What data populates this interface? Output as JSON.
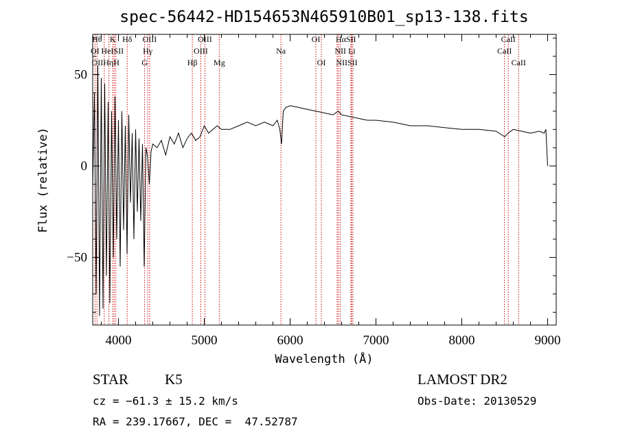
{
  "chart_data": {
    "type": "line",
    "title": "spec-56442-HD154653N465910B01_sp13-138.fits",
    "xlabel": "Wavelength (Å)",
    "ylabel": "Flux (relative)",
    "xlim": [
      3700,
      9100
    ],
    "ylim": [
      -87,
      72
    ],
    "x_ticks": [
      4000,
      5000,
      6000,
      7000,
      8000,
      9000
    ],
    "x_tick_labels": [
      "4000",
      "5000",
      "6000",
      "7000",
      "8000",
      "9000"
    ],
    "y_ticks": [
      50,
      0,
      -50
    ],
    "y_tick_labels": [
      "50",
      "0",
      "−50"
    ],
    "grid": false,
    "line_color": "#000000",
    "marker_color": "#cc0000",
    "series": [
      {
        "x": [
          3700,
          3720,
          3740,
          3760,
          3780,
          3800,
          3820,
          3840,
          3860,
          3880,
          3900,
          3920,
          3940,
          3960,
          3980,
          4000,
          4020,
          4040,
          4060,
          4080,
          4100,
          4120,
          4140,
          4160,
          4180,
          4200,
          4220,
          4240,
          4260,
          4280,
          4300,
          4320,
          4340,
          4360,
          4380,
          4400,
          4450,
          4500,
          4550,
          4600,
          4650,
          4700,
          4750,
          4800,
          4850,
          4900,
          4950,
          5000,
          5050,
          5100,
          5150,
          5200,
          5300,
          5400,
          5500,
          5600,
          5700,
          5800,
          5850,
          5880,
          5900,
          5920,
          5950,
          6000,
          6100,
          6200,
          6300,
          6400,
          6500,
          6560,
          6600,
          6700,
          6800,
          6900,
          7000,
          7200,
          7400,
          7600,
          7800,
          8000,
          8200,
          8400,
          8500,
          8540,
          8600,
          8700,
          8800,
          8900,
          8960,
          8980,
          9000
        ],
        "y": [
          -12,
          40,
          -70,
          55,
          -82,
          48,
          -78,
          45,
          -60,
          35,
          -75,
          30,
          -50,
          38,
          -40,
          25,
          -55,
          30,
          -35,
          22,
          -48,
          28,
          -20,
          18,
          -40,
          20,
          -25,
          15,
          -30,
          12,
          -55,
          10,
          5,
          -10,
          8,
          12,
          10,
          14,
          6,
          16,
          12,
          18,
          10,
          15,
          18,
          14,
          16,
          22,
          18,
          20,
          22,
          20,
          20,
          22,
          24,
          22,
          24,
          22,
          25,
          20,
          12,
          30,
          32,
          33,
          32,
          31,
          30,
          29,
          28,
          30,
          28,
          27,
          26,
          25,
          25,
          24,
          22,
          22,
          21,
          20,
          20,
          19,
          16,
          18,
          20,
          19,
          18,
          19,
          18,
          20,
          0
        ]
      }
    ],
    "lines": [
      {
        "name": "OII",
        "x": 3727
      },
      {
        "name": "Hθ",
        "x": 3750
      },
      {
        "name": "Hη",
        "x": 3835
      },
      {
        "name": "HeI",
        "x": 3889
      },
      {
        "name": "K",
        "x": 3934
      },
      {
        "name": "SII",
        "x": 3950
      },
      {
        "name": "H",
        "x": 3969
      },
      {
        "name": "Hδ",
        "x": 4102
      },
      {
        "name": "G",
        "x": 4305
      },
      {
        "name": "Hγ",
        "x": 4341
      },
      {
        "name": "OIII",
        "x": 4363
      },
      {
        "name": "Hβ",
        "x": 4861
      },
      {
        "name": "OIII",
        "x": 4959
      },
      {
        "name": "OIII",
        "x": 5007
      },
      {
        "name": "Mg",
        "x": 5175
      },
      {
        "name": "Na",
        "x": 5893
      },
      {
        "name": "OI",
        "x": 6300
      },
      {
        "name": "OI",
        "x": 6364
      },
      {
        "name": "NII",
        "x": 6548
      },
      {
        "name": "Hα",
        "x": 6563
      },
      {
        "name": "NII",
        "x": 6583
      },
      {
        "name": "Li",
        "x": 6708
      },
      {
        "name": "SII",
        "x": 6716
      },
      {
        "name": "SII",
        "x": 6731
      },
      {
        "name": "CaII",
        "x": 8498
      },
      {
        "name": "CaII",
        "x": 8542
      },
      {
        "name": "CaII",
        "x": 8662
      }
    ],
    "line_labels": [
      {
        "text": "Hθ",
        "x": 3750,
        "row": 0
      },
      {
        "text": "K",
        "x": 3934,
        "row": 0
      },
      {
        "text": "Hδ",
        "x": 4102,
        "row": 0
      },
      {
        "text": "OIII",
        "x": 4363,
        "row": 0
      },
      {
        "text": "OIII",
        "x": 5007,
        "row": 0
      },
      {
        "text": "OI",
        "x": 6300,
        "row": 0
      },
      {
        "text": "HαSII",
        "x": 6650,
        "row": 0
      },
      {
        "text": "CaII",
        "x": 8542,
        "row": 0
      },
      {
        "text": "OI",
        "x": 3727,
        "row": 1
      },
      {
        "text": "HeISII",
        "x": 3930,
        "row": 1
      },
      {
        "text": "Hγ",
        "x": 4341,
        "row": 1
      },
      {
        "text": "OIII",
        "x": 4959,
        "row": 1
      },
      {
        "text": "Na",
        "x": 5893,
        "row": 1
      },
      {
        "text": "NII Li",
        "x": 6640,
        "row": 1
      },
      {
        "text": "CaII",
        "x": 8498,
        "row": 1
      },
      {
        "text": "OIIHηH",
        "x": 3850,
        "row": 2
      },
      {
        "text": "G",
        "x": 4305,
        "row": 2
      },
      {
        "text": "Hβ",
        "x": 4861,
        "row": 2
      },
      {
        "text": "Mg",
        "x": 5175,
        "row": 2
      },
      {
        "text": "OI",
        "x": 6364,
        "row": 2
      },
      {
        "text": "NIISII",
        "x": 6660,
        "row": 2
      },
      {
        "text": "CaII",
        "x": 8662,
        "row": 2
      }
    ]
  },
  "info": {
    "object_class": "STAR",
    "subclass": "K5",
    "survey": "LAMOST DR2",
    "redshift": "cz = −61.3 ± 15.2 km/s",
    "obs_date": "Obs-Date: 20130529",
    "coords": "RA = 239.17667, DEC =  47.52787"
  }
}
